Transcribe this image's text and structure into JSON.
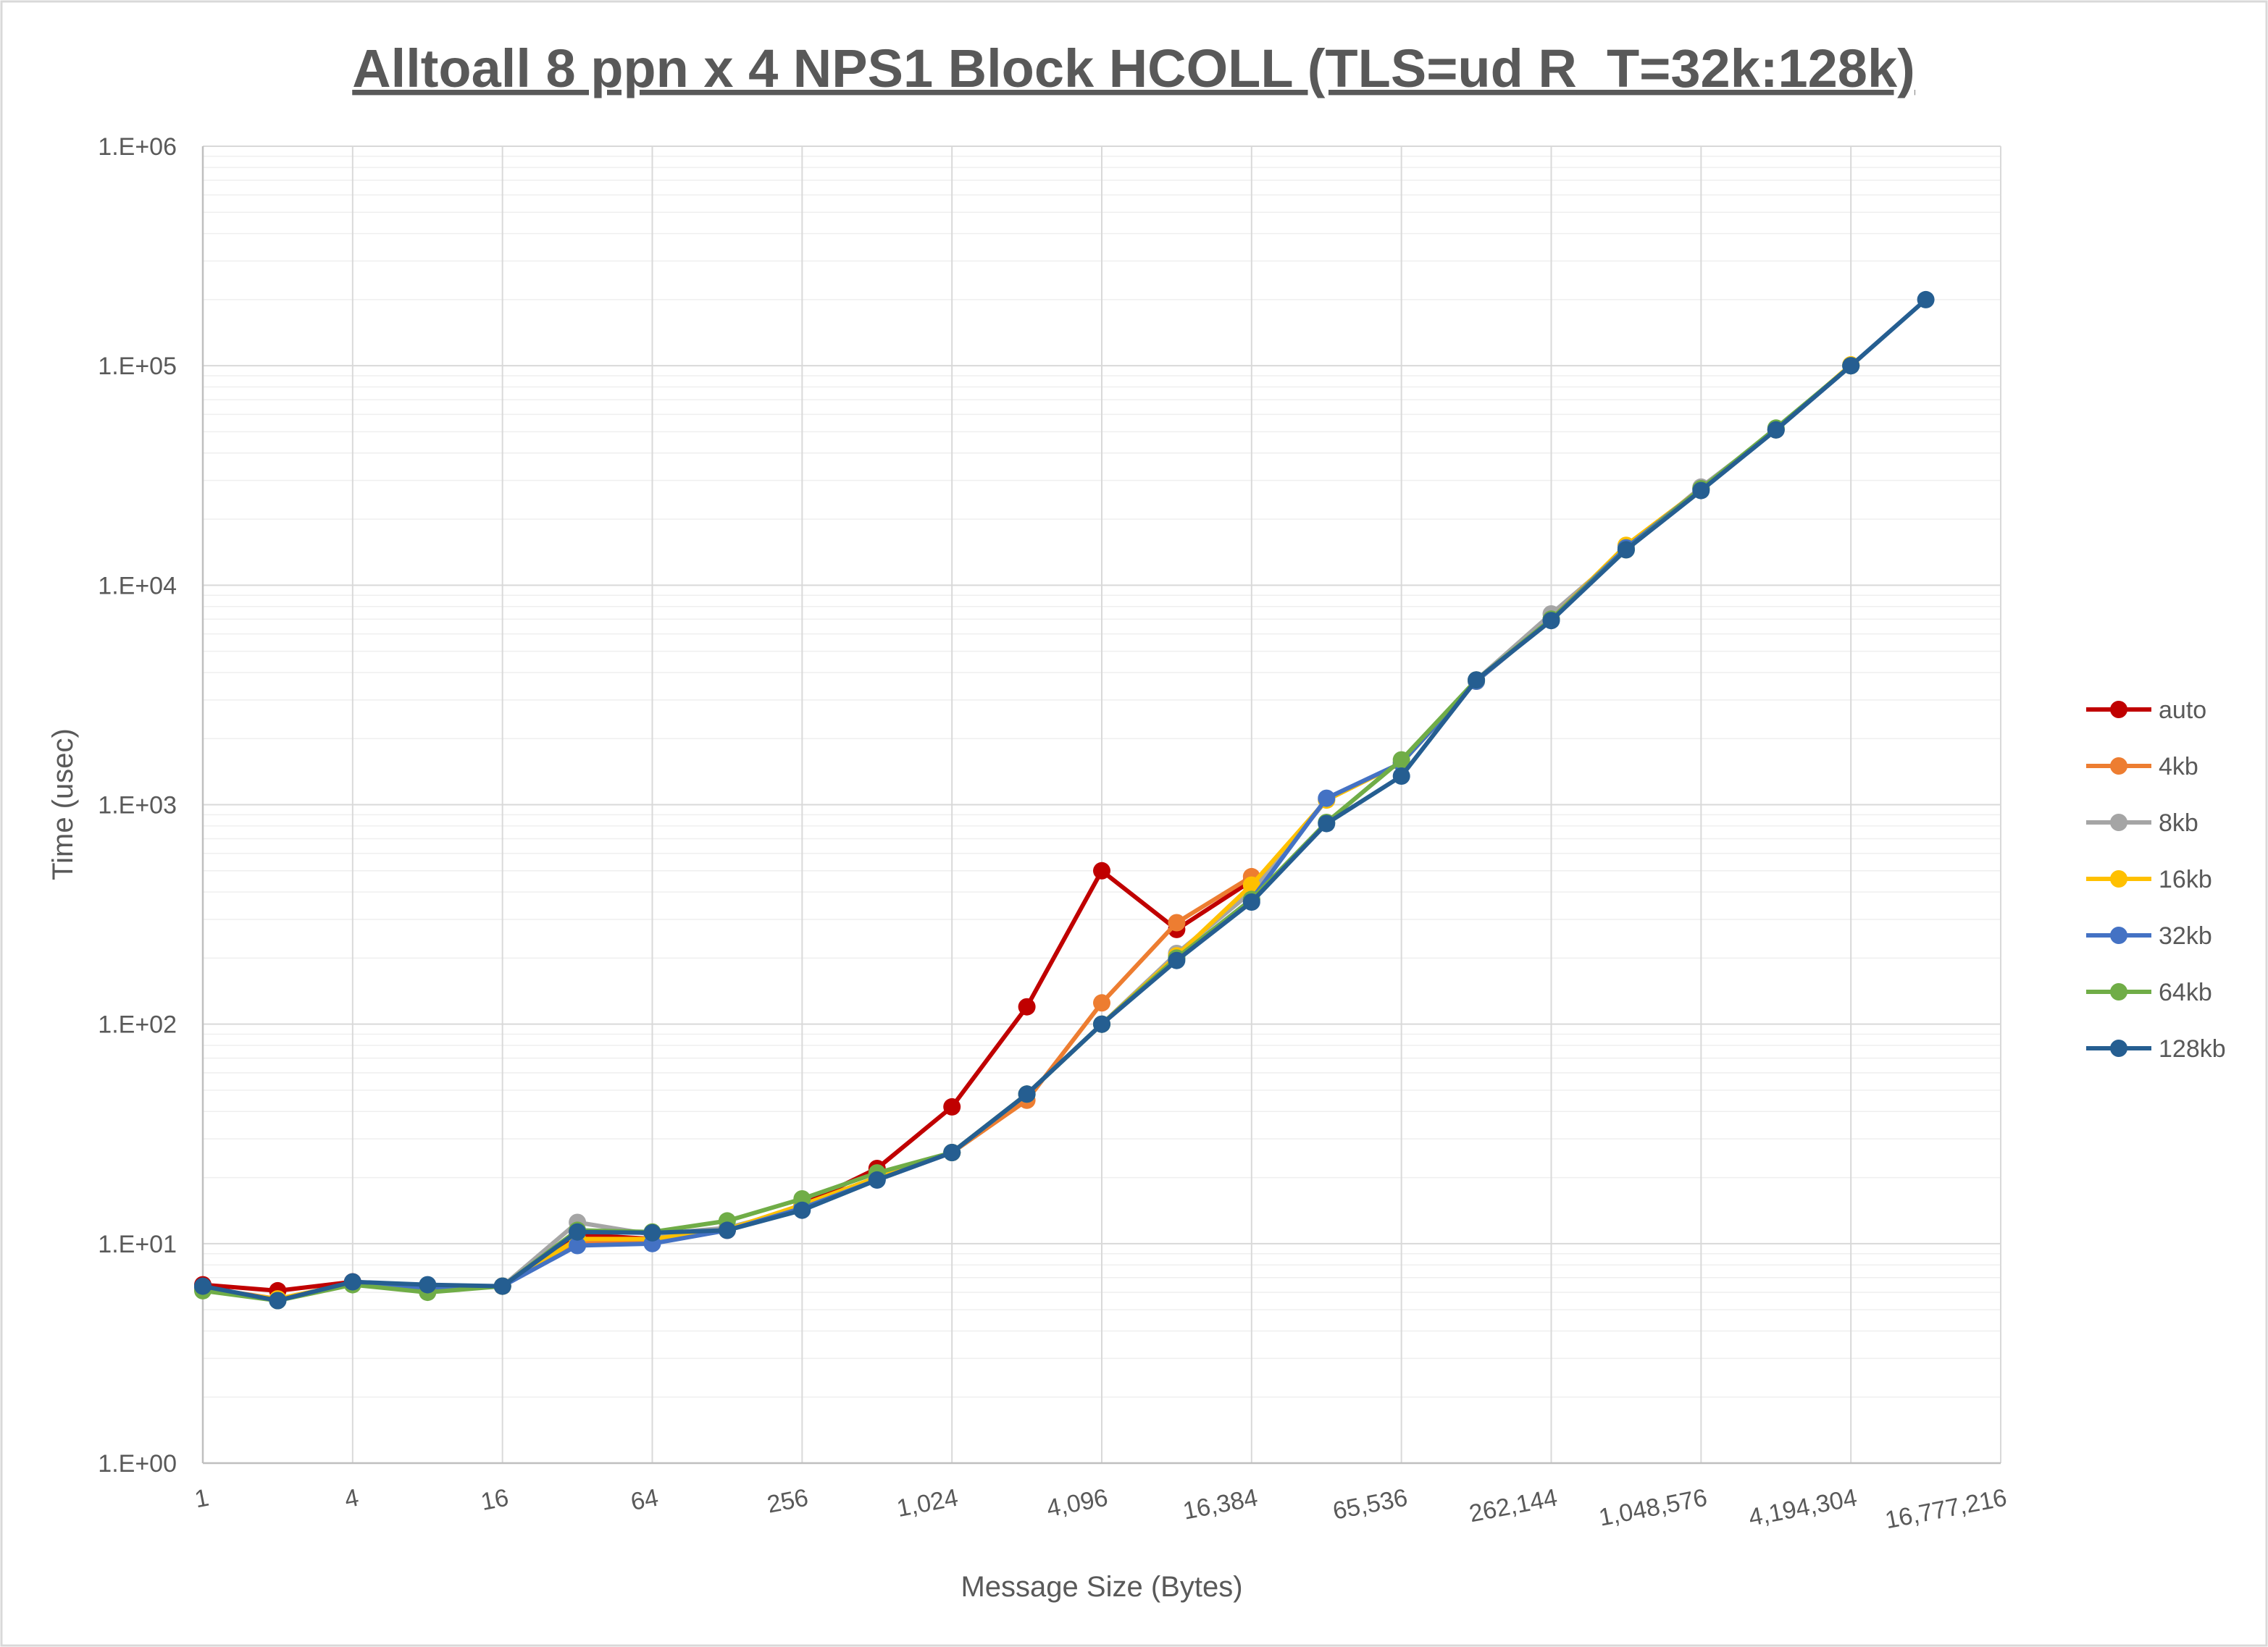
{
  "chart_data": {
    "type": "line",
    "title": "Alltoall 8 ppn x 4 NPS1 Block HCOLL (TLS=ud R_T=32k:128k)",
    "xlabel": "Message Size (Bytes)",
    "ylabel": "Time (usec)",
    "x_scale": "log2",
    "y_scale": "log10",
    "x_tick_labels": [
      "1",
      "4",
      "16",
      "64",
      "256",
      "1,024",
      "4,096",
      "16,384",
      "65,536",
      "262,144",
      "1,048,576",
      "4,194,304",
      "16,777,216"
    ],
    "y_tick_labels": [
      "1.E+00",
      "1.E+01",
      "1.E+02",
      "1.E+03",
      "1.E+04",
      "1.E+05",
      "1.E+06"
    ],
    "ylim": [
      1,
      1000000
    ],
    "x": [
      1,
      2,
      4,
      8,
      16,
      32,
      64,
      128,
      256,
      512,
      1024,
      2048,
      4096,
      8192,
      16384,
      32768,
      65536,
      131072,
      262144,
      524288,
      1048576,
      2097152,
      4194304,
      8388608
    ],
    "legend_position": "right",
    "grid": true,
    "series": [
      {
        "name": "auto",
        "color": "#c00000",
        "values": [
          6.5,
          6.1,
          6.7,
          6.4,
          6.4,
          11,
          10.5,
          11.5,
          15,
          22,
          42,
          120,
          500,
          270,
          450,
          null,
          null,
          null,
          null,
          null,
          null,
          null,
          null,
          null
        ]
      },
      {
        "name": "4kb",
        "color": "#ed7d31",
        "values": [
          6.3,
          5.6,
          6.6,
          6.2,
          6.4,
          10,
          10.3,
          11.5,
          15,
          20,
          26,
          45,
          125,
          290,
          470,
          null,
          null,
          null,
          null,
          null,
          null,
          null,
          null,
          null
        ]
      },
      {
        "name": "8kb",
        "color": "#a5a5a5",
        "values": [
          6.3,
          5.5,
          6.6,
          6.3,
          6.4,
          12.5,
          11,
          11.8,
          14.5,
          20,
          26,
          48,
          100,
          210,
          400,
          1050,
          1550,
          3700,
          7400,
          14500,
          28000,
          51000,
          100000,
          null
        ]
      },
      {
        "name": "16kb",
        "color": "#ffc000",
        "values": [
          6.2,
          5.6,
          6.6,
          6.2,
          6.4,
          10.5,
          10.5,
          11.6,
          15,
          20,
          26,
          48,
          100,
          205,
          430,
          1050,
          1550,
          3650,
          7000,
          15200,
          27500,
          51000,
          101000,
          null
        ]
      },
      {
        "name": "32kb",
        "color": "#4472c4",
        "values": [
          6.3,
          5.5,
          6.6,
          6.3,
          6.4,
          9.8,
          10,
          11.5,
          14.5,
          19.5,
          26,
          48,
          100,
          200,
          370,
          1070,
          1550,
          3650,
          7000,
          14800,
          27500,
          51000,
          100000,
          null
        ]
      },
      {
        "name": "64kb",
        "color": "#70ad47",
        "values": [
          6.1,
          5.5,
          6.5,
          6.0,
          6.4,
          11.5,
          11.3,
          12.7,
          16,
          21,
          26,
          48,
          100,
          200,
          370,
          830,
          1600,
          3700,
          7000,
          14500,
          27500,
          52000,
          100000,
          null
        ]
      },
      {
        "name": "128kb",
        "color": "#255e91",
        "values": [
          6.4,
          5.5,
          6.7,
          6.5,
          6.4,
          11.3,
          11.2,
          11.5,
          14.2,
          19.5,
          26,
          48,
          100,
          195,
          360,
          820,
          1350,
          3700,
          6900,
          14500,
          27000,
          51000,
          100000,
          200000
        ]
      }
    ]
  }
}
